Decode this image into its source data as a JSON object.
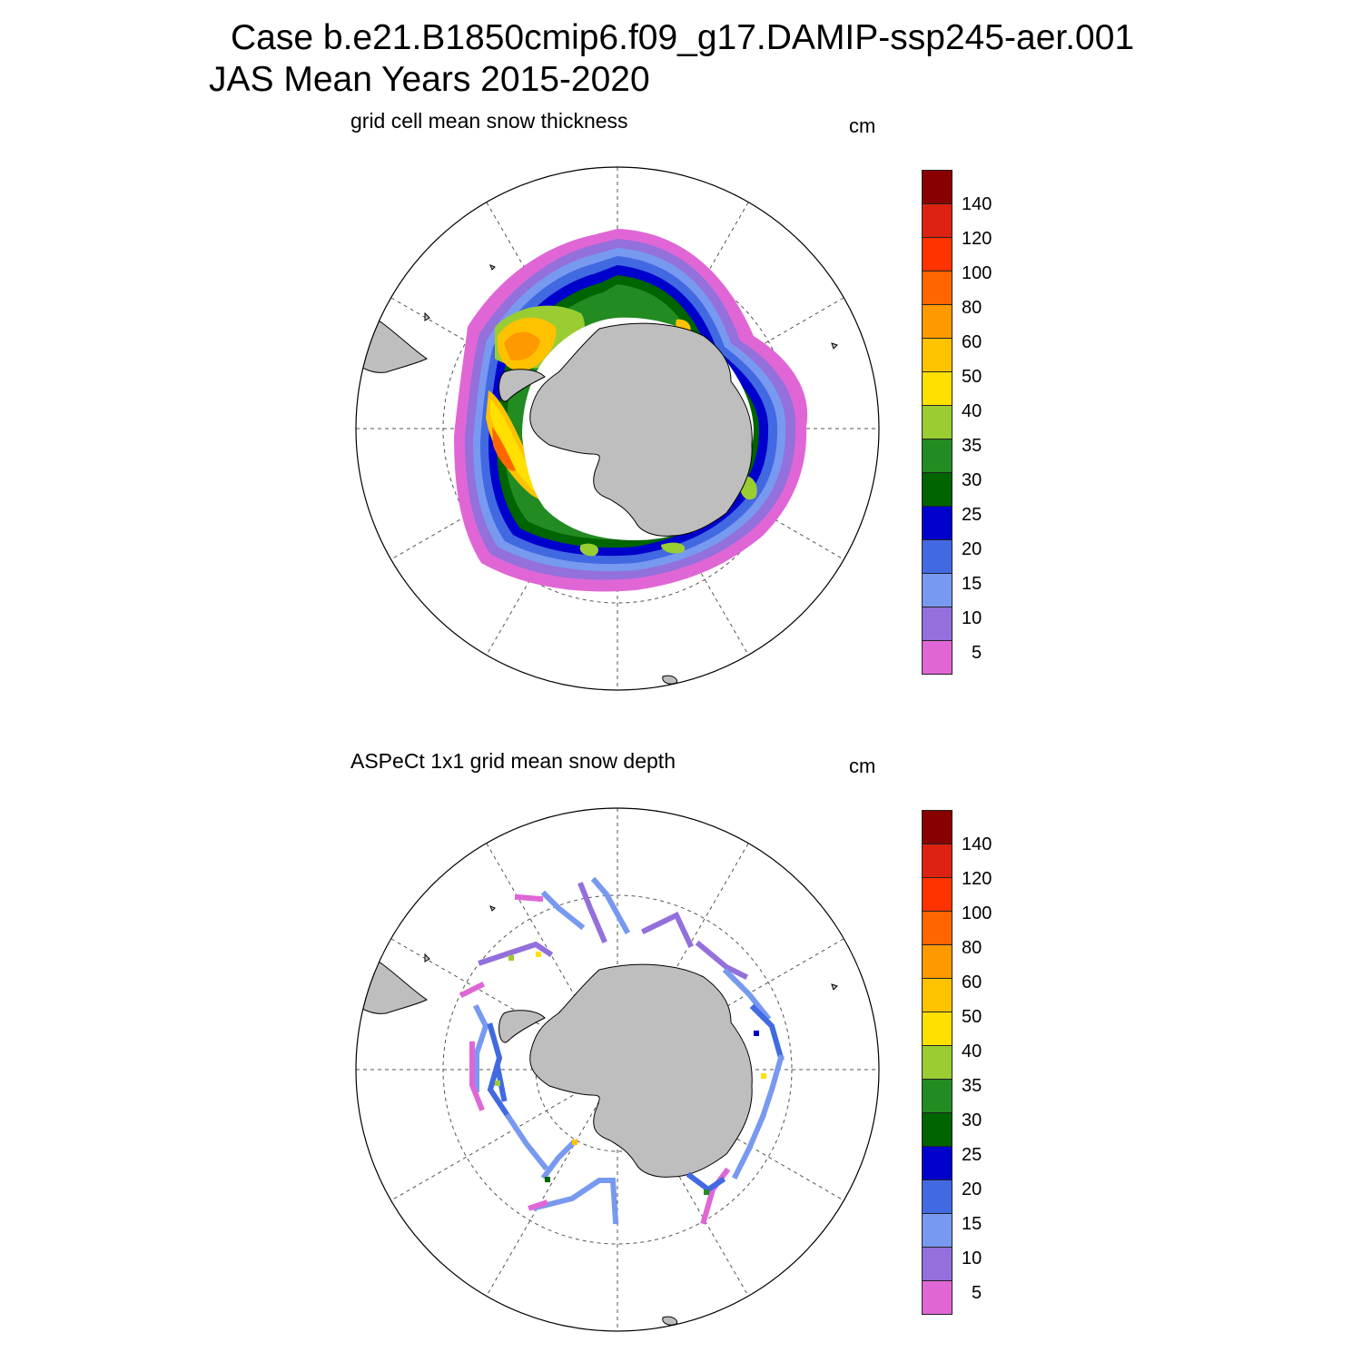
{
  "header": {
    "title_line1": "Case b.e21.B1850cmip6.f09_g17.DAMIP-ssp245-aer.001",
    "title_line2": "JAS Mean   Years 2015-2020"
  },
  "panels": [
    {
      "title": "grid cell mean snow thickness",
      "unit": "cm"
    },
    {
      "title": "ASPeCt 1x1 grid mean snow depth",
      "unit": "cm"
    }
  ],
  "colorbar": {
    "colors": [
      "#E066D6",
      "#9370DB",
      "#7899F0",
      "#4169E1",
      "#0000CD",
      "#006400",
      "#228B22",
      "#9ACD32",
      "#FFE000",
      "#FFC200",
      "#FF9900",
      "#FF6600",
      "#FF3300",
      "#DD2211",
      "#880000"
    ],
    "labels": [
      "5",
      "10",
      "15",
      "20",
      "25",
      "30",
      "35",
      "40",
      "50",
      "60",
      "80",
      "100",
      "120",
      "140"
    ]
  },
  "land_color": "#BEBEBE"
}
